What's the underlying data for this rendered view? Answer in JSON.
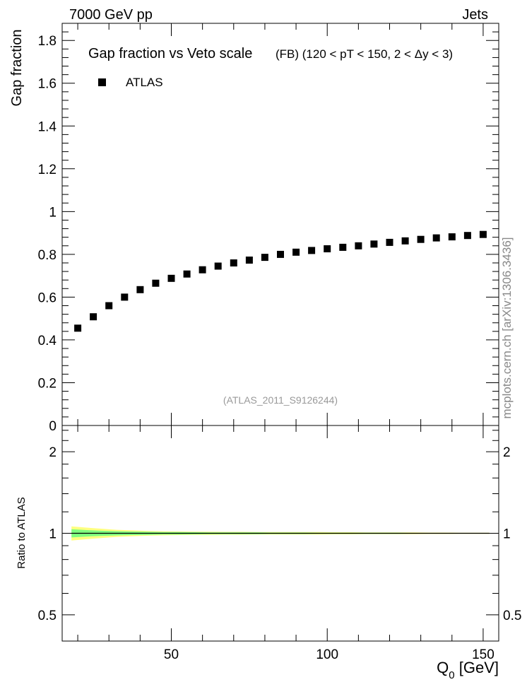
{
  "header": {
    "left": "7000 GeV pp",
    "right": "Jets"
  },
  "side_label": "mcplots.cern.ch [arXiv:1306.3436]",
  "chart_data": [
    {
      "type": "scatter",
      "title": "Gap fraction vs Veto scale",
      "subtitle": "(FB) (120 < pT < 150, 2 < Δy < 3)",
      "ylabel": "Gap fraction",
      "xlabel": "",
      "xlim": [
        15,
        155
      ],
      "ylim": [
        0,
        1.88
      ],
      "yticks": [
        0,
        0.2,
        0.4,
        0.6,
        0.8,
        1,
        1.2,
        1.4,
        1.6,
        1.8
      ],
      "ytick_labels": [
        "0",
        "0.2",
        "0.4",
        "0.6",
        "0.8",
        "1",
        "1.2",
        "1.4",
        "1.6",
        "1.8"
      ],
      "legend": {
        "position": "top-left",
        "entries": [
          "ATLAS"
        ]
      },
      "annotation": "(ATLAS_2011_S9126244)",
      "series": [
        {
          "name": "ATLAS",
          "color": "#000000",
          "marker": "square",
          "x": [
            20,
            25,
            30,
            35,
            40,
            45,
            50,
            55,
            60,
            65,
            70,
            75,
            80,
            85,
            90,
            95,
            100,
            105,
            110,
            115,
            120,
            125,
            130,
            135,
            140,
            145,
            150
          ],
          "y": [
            0.455,
            0.508,
            0.56,
            0.6,
            0.635,
            0.665,
            0.688,
            0.708,
            0.728,
            0.745,
            0.76,
            0.773,
            0.786,
            0.8,
            0.81,
            0.818,
            0.826,
            0.833,
            0.84,
            0.848,
            0.856,
            0.863,
            0.87,
            0.877,
            0.882,
            0.888,
            0.893
          ]
        }
      ]
    },
    {
      "type": "area",
      "title": "",
      "ylabel": "Ratio to ATLAS",
      "xlabel": "Q0 [GeV]",
      "xlabel_main": "Q",
      "xlabel_sub": "0",
      "xlabel_unit": " [GeV]",
      "xlim": [
        15,
        155
      ],
      "ylim": [
        0.4,
        2.5
      ],
      "log_y": true,
      "xticks": [
        50,
        100,
        150
      ],
      "xtick_labels": [
        "50",
        "100",
        "150"
      ],
      "yticks": [
        0.5,
        1,
        2
      ],
      "ytick_labels": [
        "0.5",
        "1",
        "2"
      ],
      "bands": [
        {
          "color": "#ffff80",
          "x": [
            18,
            22.5,
            27.5,
            32.5,
            37.5,
            42.5,
            47.5,
            52.5,
            57.5,
            62.5,
            67.5,
            72.5,
            77.5,
            82.5,
            87.5,
            92.5,
            97.5,
            102.5,
            107.5,
            112.5,
            117.5,
            122.5,
            127.5,
            132.5,
            137.5,
            142.5,
            147.5,
            152
          ],
          "lo": [
            0.94,
            0.95,
            0.96,
            0.97,
            0.975,
            0.98,
            0.983,
            0.985,
            0.986,
            0.987,
            0.988,
            0.988,
            0.989,
            0.989,
            0.99,
            0.99,
            0.99,
            0.991,
            0.991,
            0.992,
            0.992,
            0.993,
            0.993,
            0.994,
            0.994,
            0.995,
            0.995,
            0.995
          ],
          "hi": [
            1.06,
            1.05,
            1.04,
            1.03,
            1.025,
            1.02,
            1.017,
            1.015,
            1.014,
            1.013,
            1.012,
            1.012,
            1.011,
            1.011,
            1.01,
            1.01,
            1.01,
            1.009,
            1.009,
            1.008,
            1.008,
            1.007,
            1.007,
            1.006,
            1.006,
            1.005,
            1.005,
            1.005
          ]
        },
        {
          "color": "#80ff80",
          "x": [
            18,
            22.5,
            27.5,
            32.5,
            37.5,
            42.5,
            47.5,
            52.5,
            57.5,
            62.5,
            67.5,
            72.5,
            77.5,
            82.5,
            87.5,
            92.5,
            97.5,
            102.5,
            107.5,
            112.5,
            117.5,
            122.5,
            127.5,
            132.5,
            137.5,
            142.5,
            147.5,
            152
          ],
          "lo": [
            0.965,
            0.972,
            0.978,
            0.982,
            0.985,
            0.987,
            0.989,
            0.99,
            0.991,
            0.992,
            0.992,
            0.993,
            0.993,
            0.994,
            0.994,
            0.994,
            0.995,
            0.995,
            0.995,
            0.996,
            0.996,
            0.996,
            0.997,
            0.997,
            0.997,
            0.997,
            0.998,
            0.998
          ],
          "hi": [
            1.035,
            1.028,
            1.022,
            1.018,
            1.015,
            1.013,
            1.011,
            1.01,
            1.009,
            1.008,
            1.008,
            1.007,
            1.007,
            1.006,
            1.006,
            1.006,
            1.005,
            1.005,
            1.005,
            1.004,
            1.004,
            1.004,
            1.003,
            1.003,
            1.003,
            1.003,
            1.002,
            1.002
          ]
        }
      ],
      "reference": {
        "y": 1,
        "color": "#000000"
      }
    }
  ]
}
